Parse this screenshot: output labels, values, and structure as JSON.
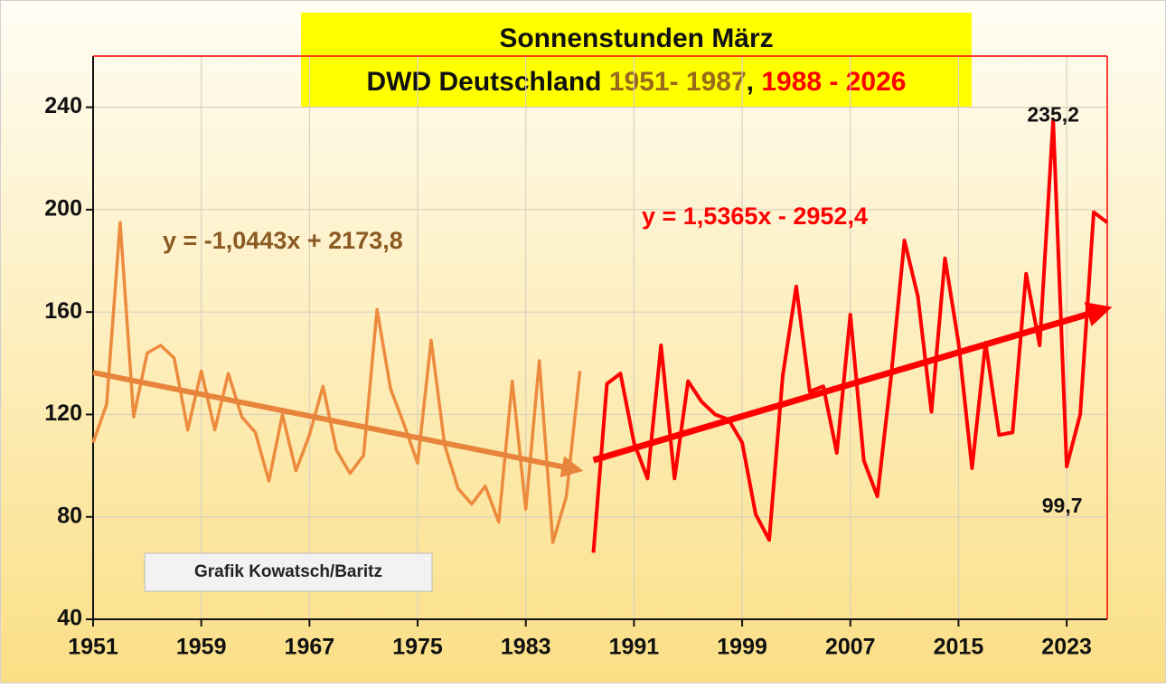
{
  "chart_data": {
    "type": "line",
    "title": "Sonnenstunden März",
    "subtitle": [
      "DWD Deutschland",
      "1951- 1987",
      ", ",
      "1988 - 2026"
    ],
    "credit": "Grafik Kowatsch/Baritz",
    "x": [
      1951,
      1952,
      1953,
      1954,
      1955,
      1956,
      1957,
      1958,
      1959,
      1960,
      1961,
      1962,
      1963,
      1964,
      1965,
      1966,
      1967,
      1968,
      1969,
      1970,
      1971,
      1972,
      1973,
      1974,
      1975,
      1976,
      1977,
      1978,
      1979,
      1980,
      1981,
      1982,
      1983,
      1984,
      1985,
      1986,
      1987,
      1988,
      1989,
      1990,
      1991,
      1992,
      1993,
      1994,
      1995,
      1996,
      1997,
      1998,
      1999,
      2000,
      2001,
      2002,
      2003,
      2004,
      2005,
      2006,
      2007,
      2008,
      2009,
      2010,
      2011,
      2012,
      2013,
      2014,
      2015,
      2016,
      2017,
      2018,
      2019,
      2020,
      2021,
      2022,
      2023,
      2024,
      2025,
      2026
    ],
    "series": [
      {
        "name": "1951- 1987",
        "color": "#ec8b3e",
        "values": [
          109,
          124,
          195,
          119,
          144,
          147,
          142,
          114,
          137,
          114,
          136,
          119,
          113,
          94,
          120,
          98,
          112,
          131,
          106,
          97,
          104,
          161,
          130,
          116,
          101,
          149,
          108,
          91,
          85,
          92,
          78,
          133,
          83,
          141,
          70,
          88,
          137,
          null,
          null,
          null,
          null,
          null,
          null,
          null,
          null,
          null,
          null,
          null,
          null,
          null,
          null,
          null,
          null,
          null,
          null,
          null,
          null,
          null,
          null,
          null,
          null,
          null,
          null,
          null,
          null,
          null,
          null,
          null,
          null,
          null,
          null,
          null,
          null,
          null,
          null,
          null
        ],
        "trend": {
          "slope": -1.0443,
          "intercept": 2173.8,
          "label": "y = -1,0443x + 2173,8",
          "color": "#e8843c",
          "label_color": "#8a5a22"
        }
      },
      {
        "name": "1988 - 2026",
        "color": "#ff0000",
        "values": [
          null,
          null,
          null,
          null,
          null,
          null,
          null,
          null,
          null,
          null,
          null,
          null,
          null,
          null,
          null,
          null,
          null,
          null,
          null,
          null,
          null,
          null,
          null,
          null,
          null,
          null,
          null,
          null,
          null,
          null,
          null,
          null,
          null,
          null,
          null,
          null,
          null,
          66,
          132,
          136,
          109,
          95,
          147,
          95,
          133,
          125,
          120,
          118,
          109,
          81,
          71,
          135,
          170,
          129,
          131,
          105,
          159,
          102,
          88,
          134,
          188,
          166,
          121,
          181,
          148,
          99,
          148,
          112,
          113,
          175,
          147,
          235.2,
          99.7,
          120,
          199,
          195
        ],
        "value_labels": [
          null,
          null,
          null,
          null,
          null,
          null,
          null,
          null,
          null,
          null,
          null,
          null,
          null,
          null,
          null,
          null,
          null,
          null,
          null,
          null,
          null,
          null,
          null,
          null,
          null,
          null,
          null,
          null,
          null,
          null,
          null,
          null,
          null,
          null,
          null,
          null,
          null,
          null,
          null,
          null,
          null,
          null,
          null,
          null,
          null,
          null,
          null,
          null,
          null,
          null,
          null,
          null,
          null,
          null,
          null,
          null,
          null,
          null,
          null,
          null,
          null,
          null,
          null,
          null,
          null,
          null,
          null,
          null,
          null,
          null,
          null,
          "235,2",
          "99,7",
          null,
          null,
          null
        ],
        "trend": {
          "slope": 1.5365,
          "intercept": -2952.4,
          "label": "y = 1,5365x - 2952,4",
          "color": "#ff0000",
          "label_color": "#ff0000"
        }
      }
    ],
    "title_year_colors": [
      "#9a6a1a",
      "#ff0000"
    ],
    "xlim": [
      1951,
      2026
    ],
    "xticks": [
      1951,
      1959,
      1967,
      1975,
      1983,
      1991,
      1999,
      2007,
      2015,
      2023
    ],
    "ylim": [
      40,
      260
    ],
    "yticks": [
      40,
      80,
      120,
      160,
      200,
      240
    ],
    "grid": true
  }
}
